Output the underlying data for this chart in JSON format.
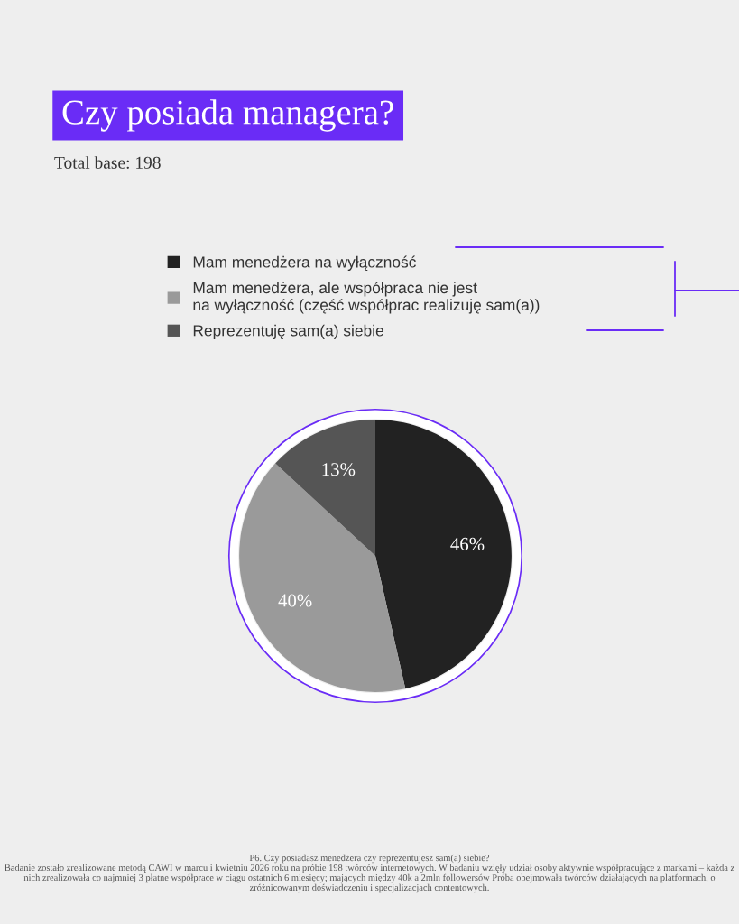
{
  "chart_data": {
    "type": "pie",
    "title": "Czy posiada managera?",
    "subtitle": "Total base: 198",
    "categories": [
      "Mam menedżera na wyłączność",
      "Mam menedżera, ale współpraca nie jest\nna wyłączność (część współprac realizuję sam(a))",
      "Reprezentuję sam(a) siebie"
    ],
    "values": [
      46,
      40,
      13
    ],
    "colors": [
      "#222222",
      "#9a9a9a",
      "#555555"
    ],
    "value_labels": [
      "46%",
      "40%",
      "13%"
    ],
    "legend": "top",
    "annotations": [
      "P6. Czy posiadasz menedżera czy reprezentujesz sam(a) siebie?\nBadanie zostało zrealizowane metodą CAWI w marcu i kwietniu 2026 roku na próbie 198 twórców internetowych. W badaniu wzięły udział osoby aktywnie współpracujące z markami – każda z nich zrealizowała co najmniej 3 płatne współprace w ciągu ostatnich 6 miesięcy; mających między 40k a 2mln followersów Próba obejmowała twórców działających na platformach, o zróżnicowanym doświadczeniu i specjalizacjach contentowych."
    ]
  }
}
